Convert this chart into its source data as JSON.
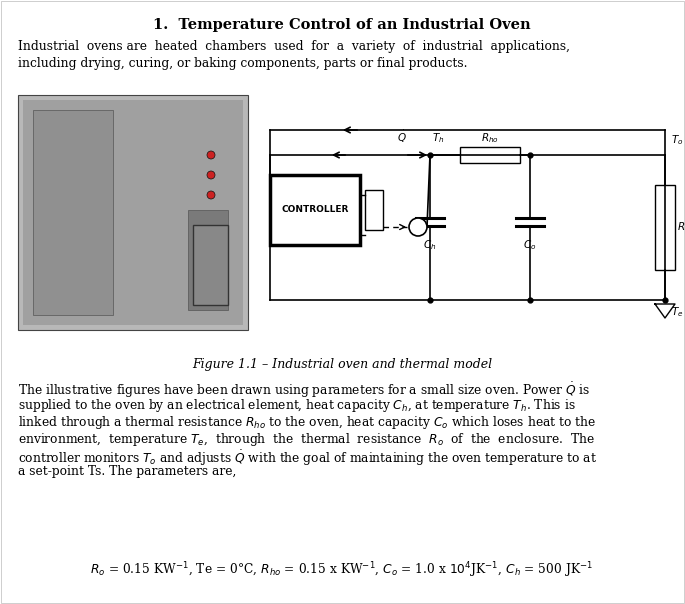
{
  "title": "1.  Temperature Control of an Industrial Oven",
  "intro1": "Industrial  ovens are  heated  chambers  used  for  a  variety  of  industrial  applications,",
  "intro2": "including drying, curing, or baking components, parts or final products.",
  "fig_caption": "Figure 1.1 – Industrial oven and thermal model",
  "body1": "The illustrative figures have been drawn using parameters for a small size oven. Power $\\dot{Q}$ is",
  "body2": "supplied to the oven by an electrical element, heat capacity $C_h$, at temperature $T_h$. This is",
  "body3": "linked through a thermal resistance $R_{ho}$ to the oven, heat capacity $C_o$ which loses heat to the",
  "body4": "environment,  temperature $T_e$,  through  the  thermal  resistance  $R_o$  of  the  enclosure.  The",
  "body5": "controller monitors $T_o$ and adjusts $\\dot{Q}$ with the goal of maintaining the oven temperature to at",
  "body6": "a set-point Ts. The parameters are,",
  "params": "$R_o$ = 0.15 KW$^{-1}$, Te = 0°C, $R_{ho}$ = 0.15 x KW$^{-1}$, $C_o$ = 1.0 x $10^4$JK$^{-1}$, $C_h$ = 500 JK$^{-1}$",
  "bg_color": "#ffffff"
}
